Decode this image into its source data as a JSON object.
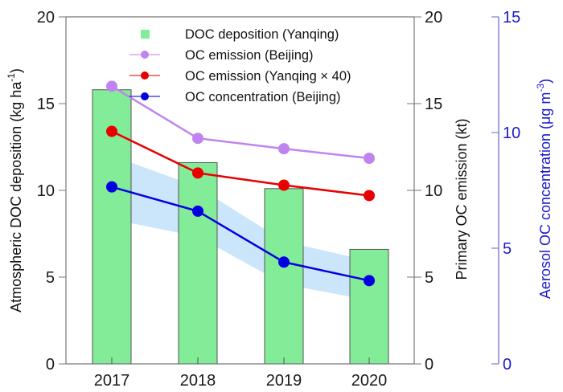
{
  "chart_data": {
    "type": "bar",
    "title": "",
    "categories": [
      "2017",
      "2018",
      "2019",
      "2020"
    ],
    "axes": {
      "left": {
        "label": "Atmospheric DOC deposition  (kg ha⁻¹)",
        "label_main": "Atmospheric DOC deposition  (kg ha",
        "label_sup": "-1",
        "label_end": ")",
        "ylim": [
          0,
          20
        ],
        "ticks": [
          "0",
          "5",
          "10",
          "15",
          "20"
        ]
      },
      "right1": {
        "label": "Primary OC emission (kt)",
        "ylim": [
          0,
          20
        ],
        "ticks": [
          "0",
          "5",
          "10",
          "15",
          "20"
        ]
      },
      "right2": {
        "label": "Aerosol OC concentration (μg m⁻³)",
        "label_main": "Aerosol OC concentration (μg m",
        "label_sup": "-3",
        "label_end": ")",
        "ylim": [
          0,
          15
        ],
        "ticks": [
          "0",
          "5",
          "10",
          "15"
        ],
        "color": "#1a1acc"
      }
    },
    "series": [
      {
        "name": "DOC deposition (Yanqing)",
        "type": "bar",
        "axis": "left",
        "values": [
          15.8,
          11.6,
          10.1,
          6.6
        ],
        "color": "#82ec98"
      },
      {
        "name": "OC emission (Beijing)",
        "type": "line",
        "axis": "right1",
        "values": [
          16.0,
          13.0,
          12.4,
          11.85
        ],
        "color": "#c084f0"
      },
      {
        "name": "OC emission (Yanqing × 40)",
        "type": "line",
        "axis": "right1",
        "values": [
          13.4,
          11.0,
          10.3,
          9.7
        ],
        "color": "#e80000"
      },
      {
        "name": "OC concentration (Beijing)",
        "type": "line",
        "axis": "right2",
        "values": [
          7.65,
          6.6,
          4.4,
          3.6
        ],
        "color": "#0000e0",
        "band": {
          "upper": [
            9.0,
            7.65,
            5.3,
            4.45
          ],
          "lower": [
            6.25,
            5.5,
            3.45,
            2.75
          ],
          "color": "#a8d4f7"
        }
      }
    ],
    "legend": {
      "placement": "top-right"
    },
    "grid": false
  }
}
